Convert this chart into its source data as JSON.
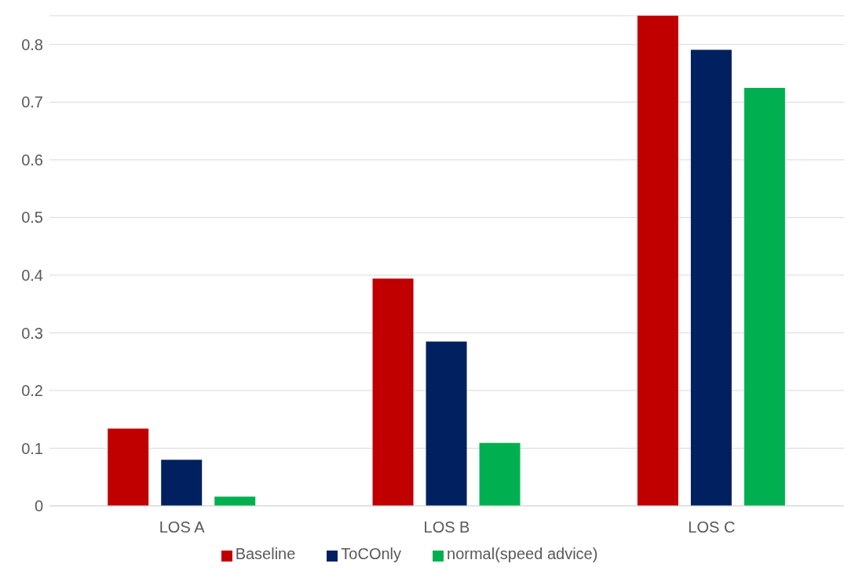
{
  "chart_data": {
    "type": "bar",
    "categories": [
      "LOS A",
      "LOS B",
      "LOS C"
    ],
    "series": [
      {
        "name": "Baseline",
        "color": "#c00000",
        "values": [
          0.134,
          0.394,
          0.85
        ]
      },
      {
        "name": "ToCOnly",
        "color": "#002060",
        "values": [
          0.08,
          0.285,
          0.791
        ]
      },
      {
        "name": "normal(speed advice)",
        "color": "#00b050",
        "values": [
          0.016,
          0.109,
          0.725
        ]
      }
    ],
    "ylim": [
      0,
      0.85
    ],
    "yticks": [
      0,
      0.1,
      0.2,
      0.3,
      0.4,
      0.5,
      0.6,
      0.7,
      0.8
    ],
    "grid": "y",
    "legend": "bottom"
  }
}
